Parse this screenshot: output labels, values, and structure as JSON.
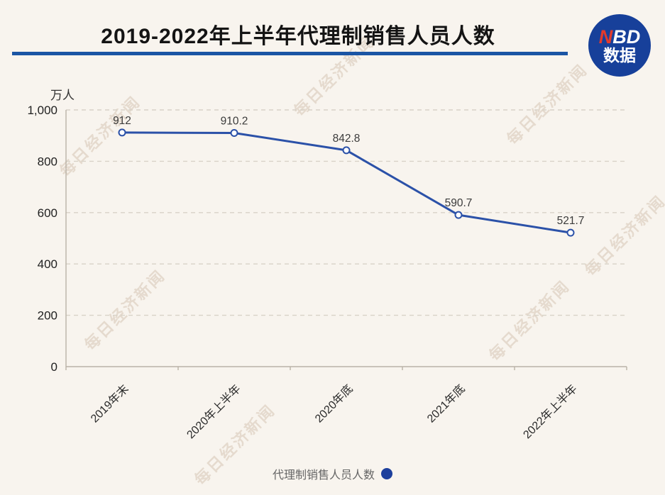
{
  "header": {
    "title": "2019-2022年上半年代理制销售人员人数"
  },
  "logo": {
    "nbd_red": "N",
    "nbd_white": "BD",
    "subtitle": "数据",
    "circle_color": "#17409a",
    "accent_red": "#e23a2c"
  },
  "watermark": {
    "text": "每日经济新闻"
  },
  "chart_data": {
    "type": "line",
    "title": "2019-2022年上半年代理制销售人员人数",
    "unit_label": "万人",
    "categories": [
      "2019年末",
      "2020年上半年",
      "2020年底",
      "2021年底",
      "2022年上半年"
    ],
    "series": [
      {
        "name": "代理制销售人员人数",
        "values": [
          912,
          910.2,
          842.8,
          590.7,
          521.7
        ],
        "labels": [
          "912",
          "910.2",
          "842.8",
          "590.7",
          "521.7"
        ],
        "color": "#2b51a8",
        "marker": "open-circle"
      }
    ],
    "ylim": [
      0,
      1000
    ],
    "yticks": [
      0,
      200,
      400,
      600,
      800,
      1000
    ],
    "ytick_labels": [
      "0",
      "200",
      "400",
      "600",
      "800",
      "1,000"
    ],
    "grid": "dashed-horizontal",
    "x_label_rotation": -45,
    "legend_position": "bottom"
  },
  "legend": {
    "label": "代理制销售人员人数",
    "dot_color": "#1d3f9c"
  },
  "colors": {
    "background": "#f8f4ee",
    "rule": "#1b55a4",
    "axis": "#b9b2a7",
    "gridline": "#d8d2c7",
    "tick_label": "#1f1f1f",
    "data_label": "#3b3b3b"
  }
}
